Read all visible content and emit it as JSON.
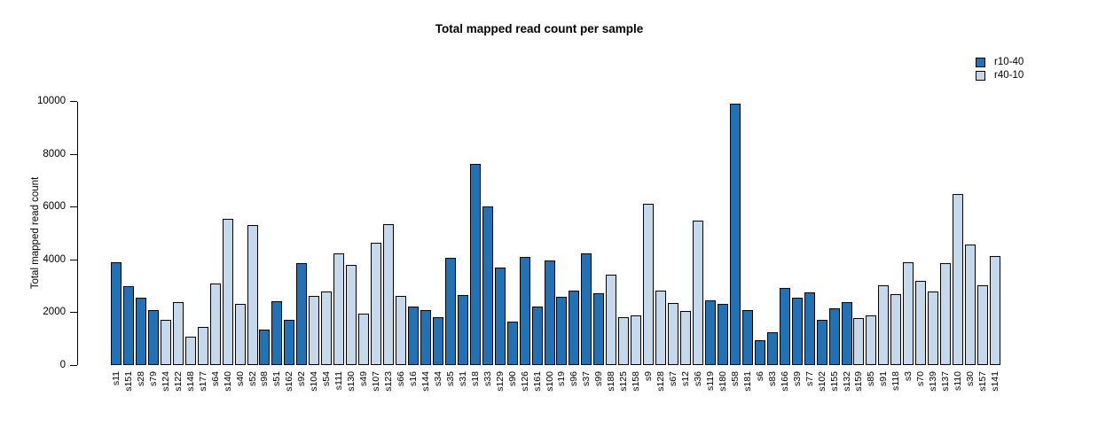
{
  "chart_data": {
    "type": "bar",
    "title": "Total mapped read count per sample",
    "ylabel": "Total mapped read count",
    "xlabel": "",
    "ylim": [
      0,
      10000
    ],
    "yticks": [
      0,
      2000,
      4000,
      6000,
      8000,
      10000
    ],
    "grid": false,
    "legend_position": "top-right",
    "series_colors": {
      "r10-40": "#2171b5",
      "r40-10": "#c6d9ec"
    },
    "legend": [
      {
        "name": "r10-40",
        "color": "#2171b5"
      },
      {
        "name": "r40-10",
        "color": "#c6d9ec"
      }
    ],
    "bars": [
      {
        "sample": "s11",
        "group": "r10-40",
        "value": 3900
      },
      {
        "sample": "s151",
        "group": "r10-40",
        "value": 3000
      },
      {
        "sample": "s28",
        "group": "r10-40",
        "value": 2550
      },
      {
        "sample": "s79",
        "group": "r10-40",
        "value": 2100
      },
      {
        "sample": "s124",
        "group": "r40-10",
        "value": 1700
      },
      {
        "sample": "s122",
        "group": "r40-10",
        "value": 2400
      },
      {
        "sample": "s148",
        "group": "r40-10",
        "value": 1080
      },
      {
        "sample": "s177",
        "group": "r40-10",
        "value": 1430
      },
      {
        "sample": "s64",
        "group": "r40-10",
        "value": 3100
      },
      {
        "sample": "s140",
        "group": "r40-10",
        "value": 5550
      },
      {
        "sample": "s40",
        "group": "r40-10",
        "value": 2330
      },
      {
        "sample": "s52",
        "group": "r40-10",
        "value": 5310
      },
      {
        "sample": "s98",
        "group": "r10-40",
        "value": 1350
      },
      {
        "sample": "s51",
        "group": "r10-40",
        "value": 2430
      },
      {
        "sample": "s162",
        "group": "r10-40",
        "value": 1730
      },
      {
        "sample": "s92",
        "group": "r10-40",
        "value": 3860
      },
      {
        "sample": "s104",
        "group": "r40-10",
        "value": 2610
      },
      {
        "sample": "s54",
        "group": "r40-10",
        "value": 2790
      },
      {
        "sample": "s111",
        "group": "r40-10",
        "value": 4250
      },
      {
        "sample": "s130",
        "group": "r40-10",
        "value": 3790
      },
      {
        "sample": "s49",
        "group": "r40-10",
        "value": 1960
      },
      {
        "sample": "s107",
        "group": "r40-10",
        "value": 4630
      },
      {
        "sample": "s123",
        "group": "r40-10",
        "value": 5360
      },
      {
        "sample": "s66",
        "group": "r40-10",
        "value": 2610
      },
      {
        "sample": "s16",
        "group": "r10-40",
        "value": 2230
      },
      {
        "sample": "s144",
        "group": "r10-40",
        "value": 2070
      },
      {
        "sample": "s34",
        "group": "r10-40",
        "value": 1810
      },
      {
        "sample": "s35",
        "group": "r10-40",
        "value": 4060
      },
      {
        "sample": "s31",
        "group": "r10-40",
        "value": 2650
      },
      {
        "sample": "s18",
        "group": "r10-40",
        "value": 7630
      },
      {
        "sample": "s33",
        "group": "r10-40",
        "value": 6010
      },
      {
        "sample": "s129",
        "group": "r10-40",
        "value": 3690
      },
      {
        "sample": "s90",
        "group": "r10-40",
        "value": 1660
      },
      {
        "sample": "s126",
        "group": "r10-40",
        "value": 4090
      },
      {
        "sample": "s161",
        "group": "r10-40",
        "value": 2210
      },
      {
        "sample": "s100",
        "group": "r10-40",
        "value": 3960
      },
      {
        "sample": "s19",
        "group": "r10-40",
        "value": 2590
      },
      {
        "sample": "s96",
        "group": "r10-40",
        "value": 2810
      },
      {
        "sample": "s37",
        "group": "r10-40",
        "value": 4250
      },
      {
        "sample": "s99",
        "group": "r10-40",
        "value": 2730
      },
      {
        "sample": "s188",
        "group": "r40-10",
        "value": 3420
      },
      {
        "sample": "s125",
        "group": "r40-10",
        "value": 1810
      },
      {
        "sample": "s158",
        "group": "r40-10",
        "value": 1870
      },
      {
        "sample": "s9",
        "group": "r40-10",
        "value": 6130
      },
      {
        "sample": "s128",
        "group": "r40-10",
        "value": 2810
      },
      {
        "sample": "s67",
        "group": "r40-10",
        "value": 2340
      },
      {
        "sample": "s12",
        "group": "r40-10",
        "value": 2060
      },
      {
        "sample": "s36",
        "group": "r40-10",
        "value": 5470
      },
      {
        "sample": "s119",
        "group": "r10-40",
        "value": 2440
      },
      {
        "sample": "s180",
        "group": "r10-40",
        "value": 2310
      },
      {
        "sample": "s58",
        "group": "r10-40",
        "value": 9930
      },
      {
        "sample": "s181",
        "group": "r10-40",
        "value": 2090
      },
      {
        "sample": "s6",
        "group": "r10-40",
        "value": 950
      },
      {
        "sample": "s83",
        "group": "r10-40",
        "value": 1230
      },
      {
        "sample": "s166",
        "group": "r10-40",
        "value": 2910
      },
      {
        "sample": "s39",
        "group": "r10-40",
        "value": 2550
      },
      {
        "sample": "s77",
        "group": "r10-40",
        "value": 2750
      },
      {
        "sample": "s102",
        "group": "r10-40",
        "value": 1730
      },
      {
        "sample": "s155",
        "group": "r10-40",
        "value": 2140
      },
      {
        "sample": "s132",
        "group": "r10-40",
        "value": 2380
      },
      {
        "sample": "s159",
        "group": "r40-10",
        "value": 1780
      },
      {
        "sample": "s85",
        "group": "r40-10",
        "value": 1890
      },
      {
        "sample": "s91",
        "group": "r40-10",
        "value": 3020
      },
      {
        "sample": "s118",
        "group": "r40-10",
        "value": 2680
      },
      {
        "sample": "s3",
        "group": "r40-10",
        "value": 3910
      },
      {
        "sample": "s70",
        "group": "r40-10",
        "value": 3200
      },
      {
        "sample": "s139",
        "group": "r40-10",
        "value": 2780
      },
      {
        "sample": "s137",
        "group": "r40-10",
        "value": 3880
      },
      {
        "sample": "s110",
        "group": "r40-10",
        "value": 6480
      },
      {
        "sample": "s30",
        "group": "r40-10",
        "value": 4560
      },
      {
        "sample": "s157",
        "group": "r40-10",
        "value": 3030
      },
      {
        "sample": "s141",
        "group": "r40-10",
        "value": 4120
      }
    ]
  }
}
